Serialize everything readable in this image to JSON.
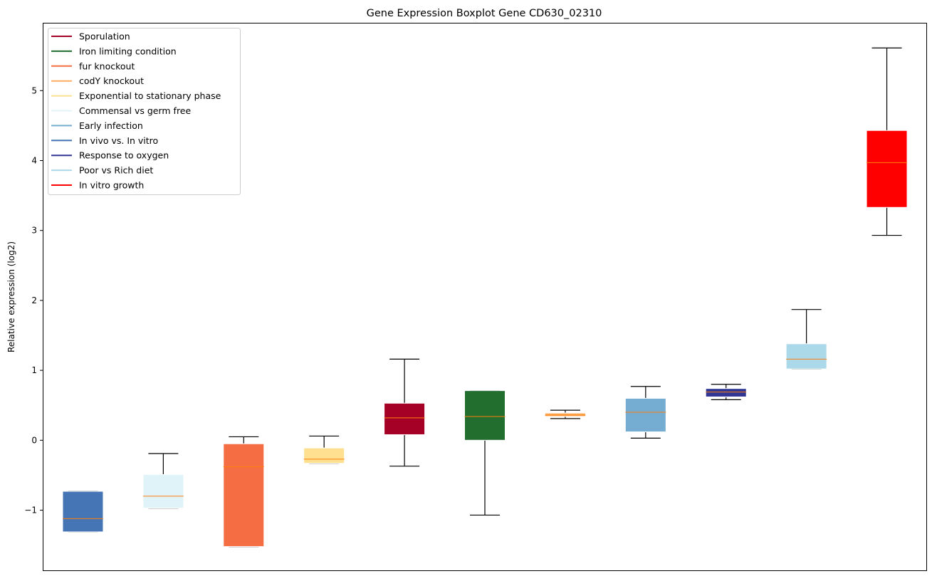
{
  "chart_data": {
    "type": "box",
    "title": "Gene Expression Boxplot Gene CD630_02310",
    "xlabel": "",
    "ylabel": "Relative expression (log2)",
    "ylim": [
      -1.87,
      5.97
    ],
    "yticks": [
      -1,
      0,
      1,
      2,
      3,
      4,
      5
    ],
    "ytick_labels": [
      "−1",
      "0",
      "1",
      "2",
      "3",
      "4",
      "5"
    ],
    "xticks_visible": false,
    "grid": false,
    "legend_position": "top-left",
    "legend": [
      {
        "label": "Sporulation",
        "color": "#a50026"
      },
      {
        "label": "Iron limiting condition",
        "color": "#216e2e"
      },
      {
        "label": "fur knockout",
        "color": "#f46d43"
      },
      {
        "label": "codY knockout",
        "color": "#fdae61"
      },
      {
        "label": "Exponential to stationary phase",
        "color": "#fee090"
      },
      {
        "label": "Commensal vs germ free",
        "color": "#e0f3f8"
      },
      {
        "label": "Early infection",
        "color": "#74add1"
      },
      {
        "label": "In vivo vs. In vitro",
        "color": "#4575b4"
      },
      {
        "label": "Response to oxygen",
        "color": "#313695"
      },
      {
        "label": "Poor vs Rich diet",
        "color": "#abd9e9"
      },
      {
        "label": "In vitro growth",
        "color": "#ff0000"
      }
    ],
    "median_color": "#ff7f0e",
    "boxes": [
      {
        "series": "In vivo vs. In vitro",
        "whislo": -1.31,
        "q1": -1.31,
        "med": -1.12,
        "q3": -0.73,
        "whishi": -0.73
      },
      {
        "series": "Commensal vs germ free",
        "whislo": -0.97,
        "q1": -0.97,
        "med": -0.8,
        "q3": -0.49,
        "whishi": -0.19
      },
      {
        "series": "fur knockout",
        "whislo": -1.52,
        "q1": -1.52,
        "med": -0.38,
        "q3": -0.05,
        "whishi": 0.05
      },
      {
        "series": "Exponential to stationary phase",
        "whislo": -0.33,
        "q1": -0.33,
        "med": -0.27,
        "q3": -0.11,
        "whishi": 0.06
      },
      {
        "series": "Sporulation",
        "whislo": -0.37,
        "q1": 0.08,
        "med": 0.32,
        "q3": 0.53,
        "whishi": 1.16
      },
      {
        "series": "Iron limiting condition",
        "whislo": -1.07,
        "q1": 0.0,
        "med": 0.34,
        "q3": 0.71,
        "whishi": 0.71
      },
      {
        "series": "codY knockout",
        "whislo": 0.31,
        "q1": 0.34,
        "med": 0.36,
        "q3": 0.39,
        "whishi": 0.43
      },
      {
        "series": "Early infection",
        "whislo": 0.03,
        "q1": 0.12,
        "med": 0.4,
        "q3": 0.6,
        "whishi": 0.77
      },
      {
        "series": "Response to oxygen",
        "whislo": 0.58,
        "q1": 0.62,
        "med": 0.69,
        "q3": 0.74,
        "whishi": 0.8
      },
      {
        "series": "Poor vs Rich diet",
        "whislo": 1.02,
        "q1": 1.02,
        "med": 1.16,
        "q3": 1.38,
        "whishi": 1.87
      },
      {
        "series": "In vitro growth",
        "whislo": 2.93,
        "q1": 3.33,
        "med": 3.97,
        "q3": 4.43,
        "whishi": 5.61
      }
    ]
  }
}
